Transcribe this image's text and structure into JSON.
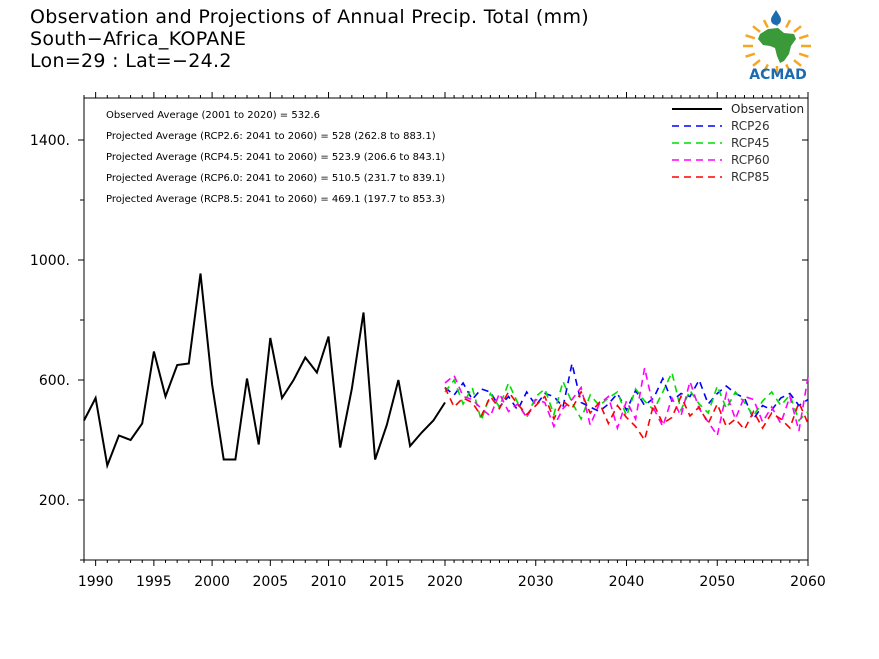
{
  "title": {
    "line1": "Observation and Projections of Annual Precip. Total (mm)",
    "line2": "South−Africa_KOPANE",
    "line3": "Lon=29 : Lat=−24.2"
  },
  "logo": {
    "text": "ACMAD",
    "brand_color": "#1a6bb0",
    "accent_color": "#f5a623",
    "map_color": "#3a9a3a",
    "icon": "africa-map-logo-icon"
  },
  "stats": [
    "Observed Average (2001 to 2020) = 532.6",
    "Projected Average (RCP2.6: 2041 to 2060) =  528 (262.8 to 883.1)",
    "Projected Average (RCP4.5: 2041 to 2060) =  523.9 (206.6 to 843.1)",
    "Projected Average (RCP6.0: 2041 to 2060) =  510.5 (231.7 to 839.1)",
    "Projected Average (RCP8.5: 2041 to 2060) =  469.1 (197.7 to 853.3)"
  ],
  "chart_data": {
    "type": "line",
    "xlim": [
      1989,
      2060
    ],
    "ylim": [
      0,
      1540
    ],
    "x_ticks": [
      1990,
      1995,
      2000,
      2005,
      2010,
      2015,
      2020,
      2030,
      2040,
      2050,
      2060
    ],
    "y_ticks": [
      200,
      600,
      1000,
      1400
    ],
    "y_tick_labels": [
      "200.",
      "600.",
      "1000.",
      "1400."
    ],
    "grid": false,
    "legend_position": "top-right",
    "series": [
      {
        "name": "Observation",
        "color": "#000000",
        "dash": "solid",
        "x": [
          1989,
          1990,
          1991,
          1992,
          1993,
          1994,
          1995,
          1996,
          1997,
          1998,
          1999,
          2000,
          2001,
          2002,
          2003,
          2004,
          2005,
          2006,
          2007,
          2008,
          2009,
          2010,
          2011,
          2012,
          2013,
          2014,
          2015,
          2016,
          2017,
          2018,
          2019,
          2020
        ],
        "y": [
          465,
          540,
          315,
          415,
          400,
          455,
          695,
          545,
          650,
          655,
          955,
          585,
          335,
          335,
          605,
          385,
          740,
          540,
          600,
          675,
          625,
          745,
          375,
          570,
          825,
          335,
          450,
          600,
          380,
          425,
          465,
          525
        ]
      },
      {
        "name": "RCP26",
        "color": "#0000ff",
        "dash": "dashed",
        "x": [
          2020,
          2021,
          2022,
          2023,
          2024,
          2025,
          2026,
          2027,
          2028,
          2029,
          2030,
          2031,
          2032,
          2033,
          2034,
          2035,
          2036,
          2037,
          2038,
          2039,
          2040,
          2041,
          2042,
          2043,
          2044,
          2045,
          2046,
          2047,
          2048,
          2049,
          2050,
          2051,
          2052,
          2053,
          2054,
          2055,
          2056,
          2057,
          2058,
          2059,
          2060
        ],
        "y": [
          575,
          550,
          590,
          535,
          570,
          560,
          510,
          545,
          500,
          560,
          515,
          555,
          545,
          510,
          655,
          525,
          510,
          495,
          520,
          555,
          500,
          565,
          515,
          540,
          605,
          530,
          555,
          545,
          600,
          520,
          555,
          580,
          555,
          540,
          470,
          515,
          500,
          540,
          555,
          515,
          535
        ]
      },
      {
        "name": "RCP45",
        "color": "#00dd00",
        "dash": "dashed",
        "x": [
          2020,
          2021,
          2022,
          2023,
          2024,
          2025,
          2026,
          2027,
          2028,
          2029,
          2030,
          2031,
          2032,
          2033,
          2034,
          2035,
          2036,
          2037,
          2038,
          2039,
          2040,
          2041,
          2042,
          2043,
          2044,
          2045,
          2046,
          2047,
          2048,
          2049,
          2050,
          2051,
          2052,
          2053,
          2054,
          2055,
          2056,
          2057,
          2058,
          2059,
          2060
        ],
        "y": [
          560,
          600,
          520,
          575,
          465,
          555,
          510,
          590,
          525,
          475,
          545,
          570,
          485,
          595,
          525,
          470,
          550,
          515,
          540,
          560,
          480,
          570,
          530,
          500,
          560,
          625,
          500,
          565,
          520,
          490,
          580,
          505,
          560,
          525,
          480,
          530,
          560,
          515,
          550,
          465,
          495
        ]
      },
      {
        "name": "RCP60",
        "color": "#ff00ff",
        "dash": "dashed",
        "x": [
          2020,
          2021,
          2022,
          2023,
          2024,
          2025,
          2026,
          2027,
          2028,
          2029,
          2030,
          2031,
          2032,
          2033,
          2034,
          2035,
          2036,
          2037,
          2038,
          2039,
          2040,
          2041,
          2042,
          2043,
          2044,
          2045,
          2046,
          2047,
          2048,
          2049,
          2050,
          2051,
          2052,
          2053,
          2054,
          2055,
          2056,
          2057,
          2058,
          2059,
          2060
        ],
        "y": [
          590,
          615,
          545,
          535,
          505,
          480,
          555,
          495,
          520,
          475,
          535,
          525,
          445,
          505,
          535,
          575,
          450,
          520,
          545,
          440,
          530,
          470,
          640,
          505,
          445,
          540,
          480,
          595,
          505,
          460,
          415,
          555,
          470,
          545,
          535,
          460,
          510,
          455,
          545,
          430,
          610
        ]
      },
      {
        "name": "RCP85",
        "color": "#ff0000",
        "dash": "dashed",
        "x": [
          2020,
          2021,
          2022,
          2023,
          2024,
          2025,
          2026,
          2027,
          2028,
          2029,
          2030,
          2031,
          2032,
          2033,
          2034,
          2035,
          2036,
          2037,
          2038,
          2039,
          2040,
          2041,
          2042,
          2043,
          2044,
          2045,
          2046,
          2047,
          2048,
          2049,
          2050,
          2051,
          2052,
          2053,
          2054,
          2055,
          2056,
          2057,
          2058,
          2059,
          2060
        ],
        "y": [
          575,
          510,
          540,
          525,
          480,
          545,
          505,
          560,
          520,
          485,
          515,
          545,
          470,
          530,
          505,
          560,
          490,
          525,
          455,
          515,
          475,
          445,
          400,
          520,
          455,
          475,
          545,
          480,
          510,
          455,
          520,
          445,
          470,
          435,
          495,
          440,
          490,
          470,
          440,
          525,
          455
        ]
      }
    ]
  }
}
